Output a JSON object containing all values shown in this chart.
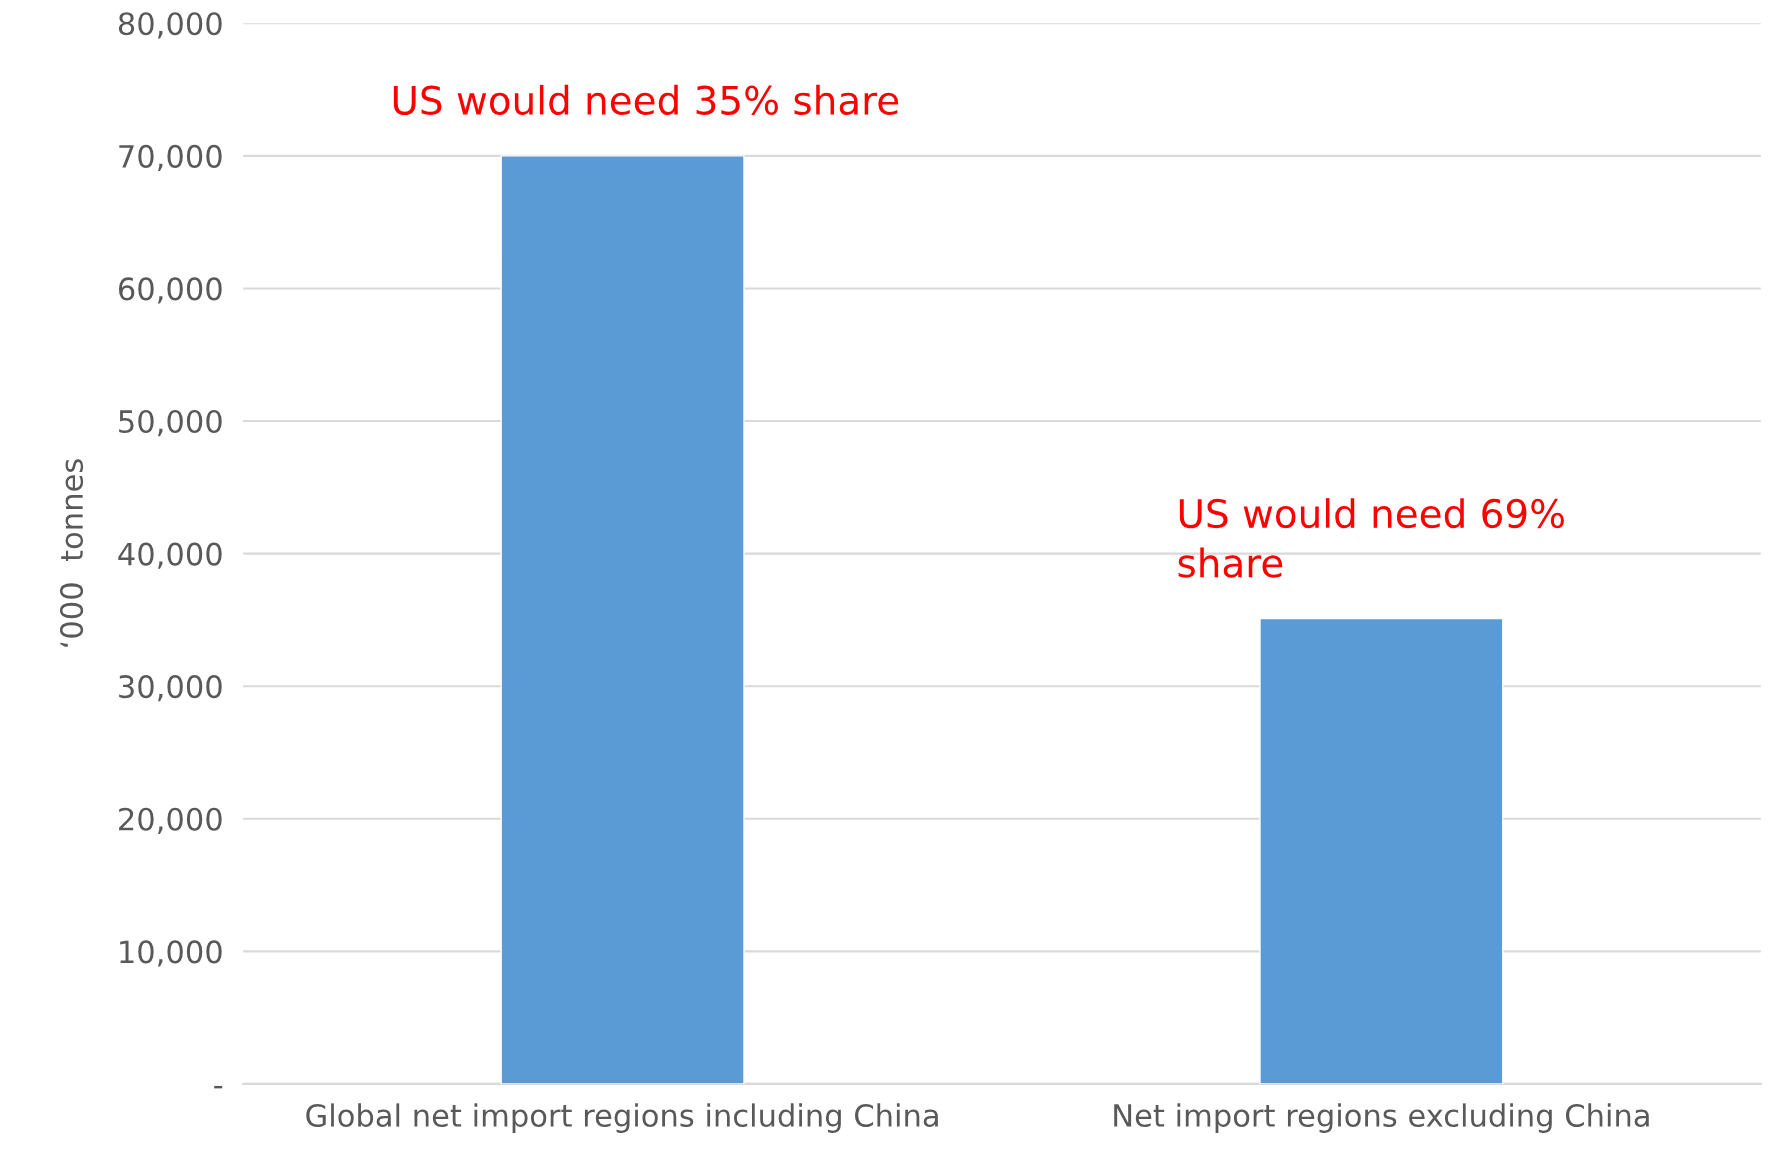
{
  "chart_data": {
    "type": "bar",
    "ylabel": "‘000  tonnes",
    "categories": [
      "Global net import regions including China",
      "Net import regions excluding China"
    ],
    "values": [
      70000,
      35100
    ],
    "color": "#5b9bd5",
    "ylim": [
      0,
      80000
    ],
    "yticks": [
      {
        "value": 0,
        "label": "-"
      },
      {
        "value": 10000,
        "label": "10,000"
      },
      {
        "value": 20000,
        "label": "20,000"
      },
      {
        "value": 30000,
        "label": "30,000"
      },
      {
        "value": 40000,
        "label": "40,000"
      },
      {
        "value": 50000,
        "label": "50,000"
      },
      {
        "value": 60000,
        "label": "60,000"
      },
      {
        "value": 70000,
        "label": "70,000"
      },
      {
        "value": 80000,
        "label": "80,000"
      }
    ],
    "grid": "y",
    "annotations": [
      "US would need 35% share",
      "US would need 69%\nshare"
    ]
  }
}
